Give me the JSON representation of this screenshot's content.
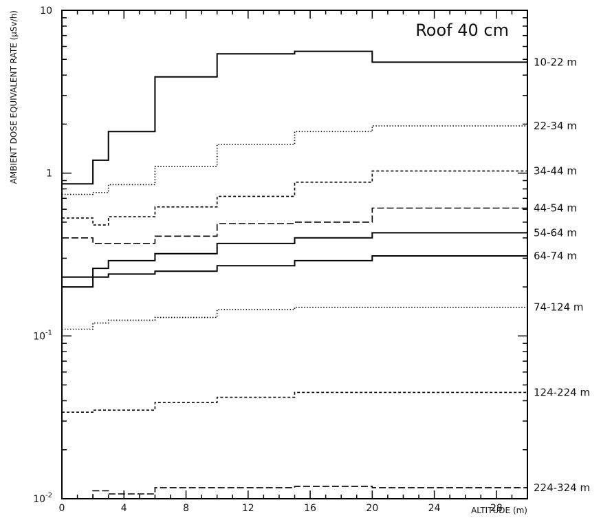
{
  "chart_data": {
    "type": "line",
    "step": true,
    "title": "",
    "annotation": "Roof 40 cm",
    "xlabel": "ALTITUDE (m)",
    "ylabel": "AMBIENT DOSE EQUIVALENT RATE (μSv/h)",
    "xlim": [
      0,
      30
    ],
    "ylim": [
      0.01,
      10
    ],
    "yscale": "log",
    "x_ticks": [
      "0",
      "4",
      "8",
      "12",
      "16",
      "20",
      "24",
      "28"
    ],
    "y_ticks": [
      {
        "value": 10,
        "label": "10",
        "sup": ""
      },
      {
        "value": 1,
        "label": "1",
        "sup": ""
      },
      {
        "value": 0.1,
        "label": "10",
        "sup": "-1"
      },
      {
        "value": 0.01,
        "label": "10",
        "sup": "-2"
      }
    ],
    "bin_edges": [
      0,
      2,
      3,
      6,
      10,
      15,
      20,
      30
    ],
    "series": [
      {
        "name": "10-22 m",
        "style": "solid",
        "values": [
          0.86,
          1.2,
          1.8,
          3.9,
          5.4,
          5.6,
          4.8
        ]
      },
      {
        "name": "22-34 m",
        "style": "dotted",
        "values": [
          0.74,
          0.76,
          0.85,
          1.1,
          1.5,
          1.8,
          1.95
        ]
      },
      {
        "name": "34-44 m",
        "style": "dashed",
        "values": [
          0.53,
          0.48,
          0.54,
          0.62,
          0.72,
          0.88,
          1.03
        ]
      },
      {
        "name": "44-54 m",
        "style": "longdash",
        "values": [
          0.4,
          0.37,
          0.37,
          0.41,
          0.49,
          0.5,
          0.61
        ]
      },
      {
        "name": "54-64 m",
        "style": "solid",
        "values": [
          0.23,
          0.26,
          0.29,
          0.32,
          0.37,
          0.4,
          0.43
        ]
      },
      {
        "name": "64-74 m",
        "style": "solid",
        "values": [
          0.2,
          0.23,
          0.24,
          0.25,
          0.27,
          0.29,
          0.31
        ]
      },
      {
        "name": "74-124 m",
        "style": "dotted",
        "values": [
          0.11,
          0.12,
          0.125,
          0.13,
          0.145,
          0.15,
          0.15
        ]
      },
      {
        "name": "124-224 m",
        "style": "dashed",
        "values": [
          0.034,
          0.035,
          0.035,
          0.039,
          0.042,
          0.045,
          0.045
        ]
      },
      {
        "name": "224-324 m",
        "style": "longdash",
        "values": [
          0.01,
          0.0112,
          0.0107,
          0.0117,
          0.0117,
          0.0119,
          0.0117
        ]
      }
    ]
  }
}
